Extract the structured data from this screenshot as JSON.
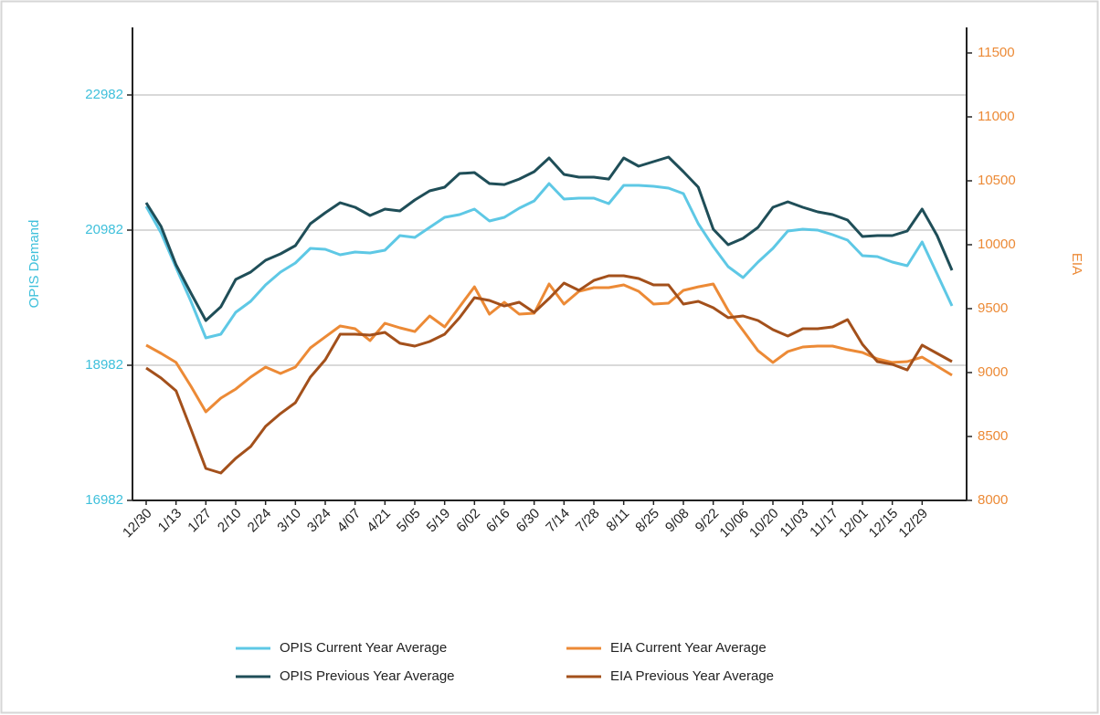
{
  "chart_data": {
    "type": "line",
    "y_label": "OPIS Demand",
    "y2_label": "EIA",
    "categories": [
      "12/30",
      null,
      "1/13",
      null,
      "1/27",
      null,
      "2/10",
      null,
      "2/24",
      null,
      "3/10",
      null,
      "3/24",
      null,
      "4/07",
      null,
      "4/21",
      null,
      "5/05",
      null,
      "5/19",
      null,
      "6/02",
      null,
      "6/16",
      null,
      "6/30",
      null,
      "7/14",
      null,
      "7/28",
      null,
      "8/11",
      null,
      "8/25",
      null,
      "9/08",
      null,
      "9/22",
      null,
      "10/06",
      null,
      "10/20",
      null,
      "11/03",
      null,
      "11/17",
      null,
      "12/01",
      null,
      "12/15",
      null,
      "12/29",
      null,
      null
    ],
    "ylim": [
      16982,
      23982
    ],
    "yticks": [
      16982,
      18982,
      20982,
      22982
    ],
    "y2lim": [
      8000,
      11700
    ],
    "y2ticks": [
      8000,
      8500,
      9000,
      9500,
      10000,
      10500,
      11000,
      11500
    ],
    "grid": true,
    "legend": "bottom",
    "series": [
      {
        "name": "OPIS Current Year Average",
        "color": "#5ec8e5",
        "axis": "y",
        "values": [
          21333,
          20941,
          20428,
          19928,
          19387,
          19441,
          19766,
          19928,
          20171,
          20360,
          20495,
          20712,
          20698,
          20617,
          20658,
          20644,
          20685,
          20901,
          20874,
          21023,
          21171,
          21212,
          21293,
          21117,
          21171,
          21306,
          21414,
          21671,
          21441,
          21455,
          21455,
          21374,
          21644,
          21644,
          21630,
          21603,
          21522,
          21077,
          20739,
          20441,
          20279,
          20509,
          20712,
          20968,
          20995,
          20982,
          20914,
          20833,
          20604,
          20590,
          20509,
          20455,
          20806,
          20333,
          19860
        ]
      },
      {
        "name": "OPIS Previous Year Average",
        "color": "#1f4e58",
        "axis": "y",
        "values": [
          21387,
          21036,
          20468,
          20050,
          19644,
          19847,
          20252,
          20360,
          20536,
          20631,
          20752,
          21077,
          21239,
          21387,
          21320,
          21198,
          21293,
          21266,
          21428,
          21563,
          21617,
          21820,
          21833,
          21671,
          21657,
          21738,
          21847,
          22050,
          21806,
          21766,
          21766,
          21738,
          22050,
          21928,
          21995,
          22063,
          21847,
          21617,
          20995,
          20766,
          20860,
          21023,
          21320,
          21401,
          21320,
          21252,
          21212,
          21131,
          20887,
          20901,
          20901,
          20968,
          21293,
          20901,
          20387
        ]
      },
      {
        "name": "EIA Current Year Average",
        "color": "#ec8a36",
        "axis": "y2",
        "values": [
          9214,
          9150,
          9079,
          8893,
          8693,
          8800,
          8871,
          8964,
          9043,
          8993,
          9043,
          9193,
          9279,
          9364,
          9343,
          9250,
          9386,
          9350,
          9321,
          9443,
          9357,
          9514,
          9671,
          9457,
          9550,
          9457,
          9464,
          9693,
          9536,
          9636,
          9664,
          9664,
          9686,
          9636,
          9536,
          9543,
          9643,
          9671,
          9693,
          9486,
          9329,
          9171,
          9079,
          9164,
          9200,
          9207,
          9207,
          9179,
          9157,
          9107,
          9079,
          9086,
          9121,
          9050,
          8979
        ]
      },
      {
        "name": "EIA Previous Year Average",
        "color": "#a3501b",
        "axis": "y2",
        "values": [
          9036,
          8957,
          8857,
          8557,
          8250,
          8214,
          8329,
          8421,
          8579,
          8679,
          8764,
          8964,
          9100,
          9300,
          9300,
          9293,
          9314,
          9229,
          9207,
          9243,
          9300,
          9429,
          9586,
          9564,
          9521,
          9550,
          9471,
          9579,
          9700,
          9643,
          9721,
          9757,
          9757,
          9736,
          9686,
          9686,
          9536,
          9557,
          9507,
          9429,
          9443,
          9407,
          9336,
          9286,
          9343,
          9343,
          9357,
          9414,
          9221,
          9086,
          9064,
          9021,
          9214,
          9150,
          9086
        ]
      }
    ]
  }
}
